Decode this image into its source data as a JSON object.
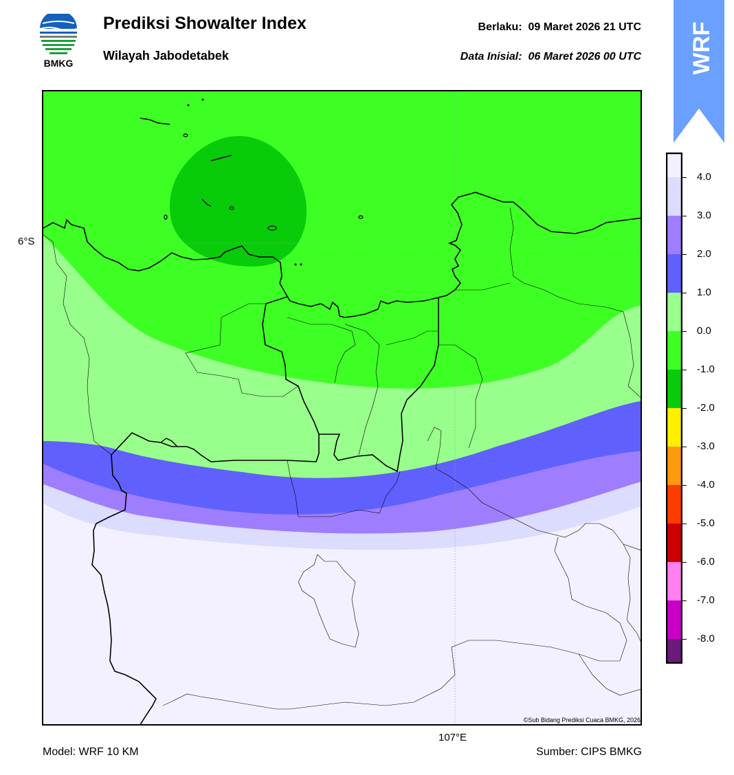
{
  "header": {
    "title": "Prediksi Showalter Index",
    "subtitle": "Wilayah Jabodetabek",
    "valid_label": "Berlaku:",
    "valid_value": "09 Maret 2026 21 UTC",
    "init_label": "Data Inisial:",
    "init_value": "06 Maret 2026 00 UTC"
  },
  "logo": {
    "text": "BMKG",
    "icon": "bmkg-logo-icon"
  },
  "banner": {
    "text": "WRF",
    "color": "#6aa0ff"
  },
  "map": {
    "lat_label": "6°S",
    "lon_label": "107°E",
    "copyright": "©Sub Bidang Prediksi Cuaca BMKG, 2026"
  },
  "footer": {
    "model": "Model: WRF 10 KM",
    "source": "Sumber: CIPS BMKG"
  },
  "colorbar": {
    "ticks": [
      "4.0",
      "3.0",
      "2.0",
      "1.0",
      "0.0",
      "-1.0",
      "-2.0",
      "-3.0",
      "-4.0",
      "-5.0",
      "-6.0",
      "-7.0",
      "-8.0"
    ],
    "colors": [
      "#f3f1ff",
      "#dcdcff",
      "#9e7eff",
      "#6060ff",
      "#99ff8c",
      "#3eff24",
      "#08cc0a",
      "#fff000",
      "#ff9910",
      "#ff3c00",
      "#cc0000",
      "#ff80f0",
      "#c800c8",
      "#6a1a78"
    ]
  }
}
